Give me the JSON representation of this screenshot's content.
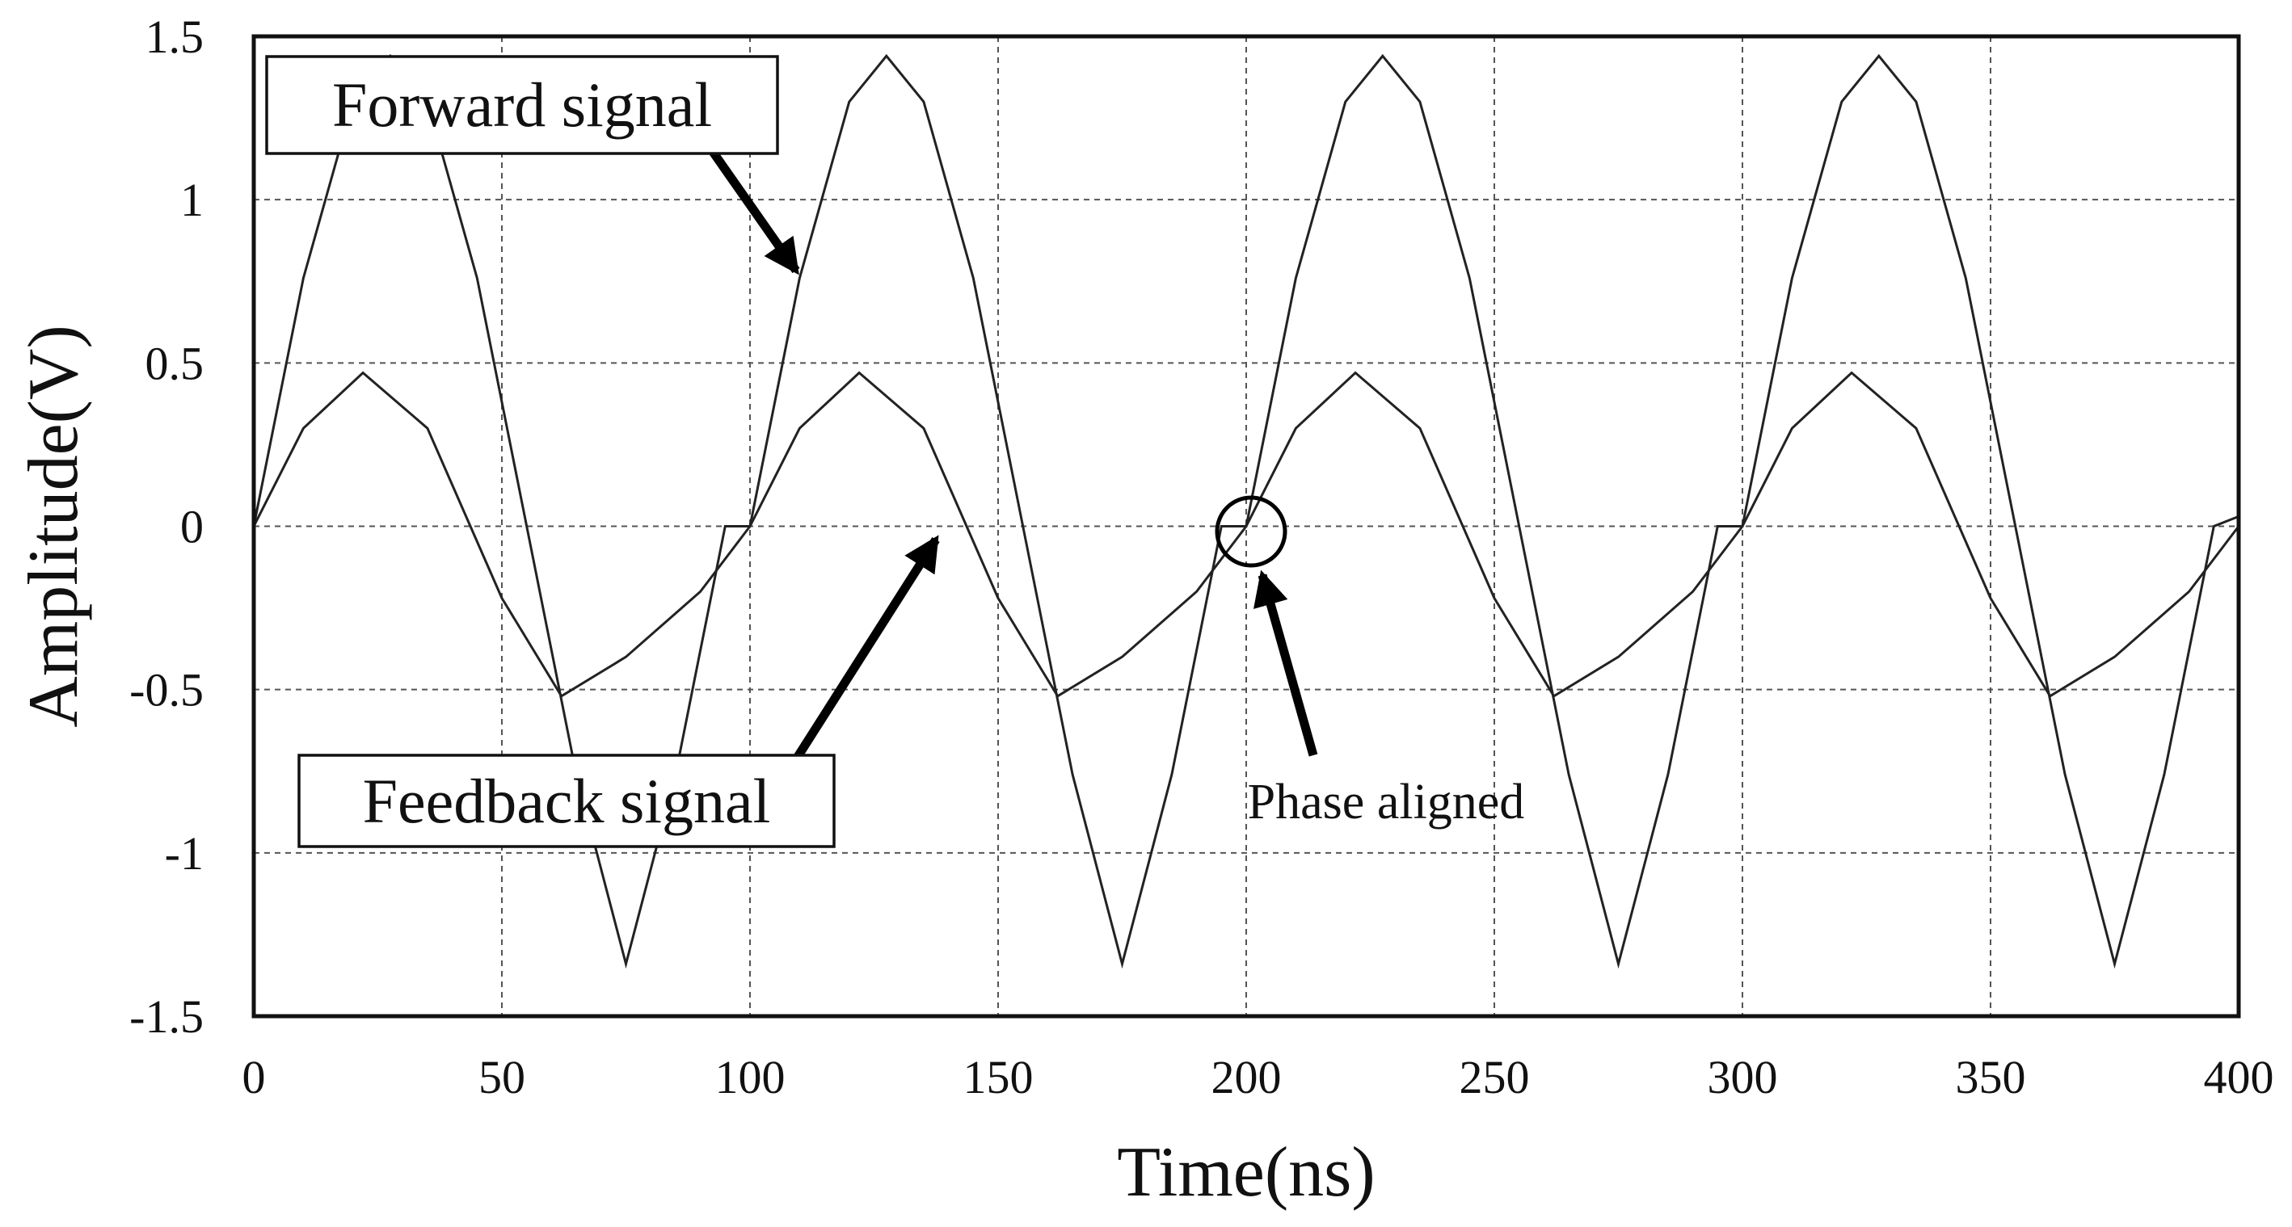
{
  "chart_data": {
    "type": "line",
    "title": "",
    "xlabel": "Time(ns)",
    "ylabel": "Amplitude(V)",
    "xlim": [
      0,
      400
    ],
    "ylim": [
      -1.5,
      1.5
    ],
    "xticks": [
      0,
      50,
      100,
      150,
      200,
      250,
      300,
      350,
      400
    ],
    "yticks": [
      -1.5,
      -1,
      -0.5,
      0,
      0.5,
      1,
      1.5
    ],
    "xtick_labels": [
      "0",
      "50",
      "100",
      "150",
      "200",
      "250",
      "300",
      "350",
      "400"
    ],
    "ytick_labels": [
      "-1.5",
      "-1",
      "-0.5",
      "0",
      "0.5",
      "1",
      "1.5"
    ],
    "grid": true,
    "series": [
      {
        "x": [
          0,
          10,
          20,
          27.5,
          35,
          45,
          55,
          65,
          75,
          85,
          95,
          100,
          110,
          120,
          127.5,
          135,
          145,
          155,
          165,
          175,
          185,
          195,
          200,
          210,
          220,
          227.5,
          235,
          245,
          255,
          265,
          275,
          285,
          295,
          300,
          310,
          320,
          327.5,
          335,
          345,
          355,
          365,
          375,
          385,
          395,
          400
        ],
        "y": [
          0,
          0.76,
          1.3,
          1.44,
          1.3,
          0.76,
          0,
          -0.76,
          -1.34,
          -0.76,
          0,
          0,
          0.76,
          1.3,
          1.44,
          1.3,
          0.76,
          0,
          -0.76,
          -1.34,
          -0.76,
          0,
          0,
          0.76,
          1.3,
          1.44,
          1.3,
          0.76,
          0,
          -0.76,
          -1.34,
          -0.76,
          0,
          0,
          0.76,
          1.3,
          1.44,
          1.3,
          0.76,
          0,
          -0.76,
          -1.34,
          -0.76,
          0,
          0.03
        ]
      },
      {
        "x": [
          0,
          10,
          22,
          35,
          50,
          62,
          75,
          90,
          100,
          110,
          122,
          135,
          150,
          162,
          175,
          190,
          200,
          210,
          222,
          235,
          250,
          262,
          275,
          290,
          300,
          310,
          322,
          335,
          350,
          362,
          375,
          390,
          400
        ],
        "y": [
          0,
          0.3,
          0.47,
          0.3,
          -0.22,
          -0.52,
          -0.4,
          -0.2,
          0,
          0.3,
          0.47,
          0.3,
          -0.22,
          -0.52,
          -0.4,
          -0.2,
          0,
          0.3,
          0.47,
          0.3,
          -0.22,
          -0.52,
          -0.4,
          -0.2,
          0,
          0.3,
          0.47,
          0.3,
          -0.22,
          -0.52,
          -0.4,
          -0.2,
          0
        ]
      }
    ],
    "annotations": [
      {
        "text": "Forward signal",
        "box": true,
        "arrow_to": [
          110,
          0.78
        ]
      },
      {
        "text": "Feedback signal",
        "box": true,
        "arrow_to": [
          138,
          -0.02
        ]
      },
      {
        "text": "Phase aligned",
        "box": false,
        "marker": "circle",
        "at": [
          200,
          0
        ],
        "arrow_to": [
          203,
          -0.1
        ]
      }
    ]
  }
}
